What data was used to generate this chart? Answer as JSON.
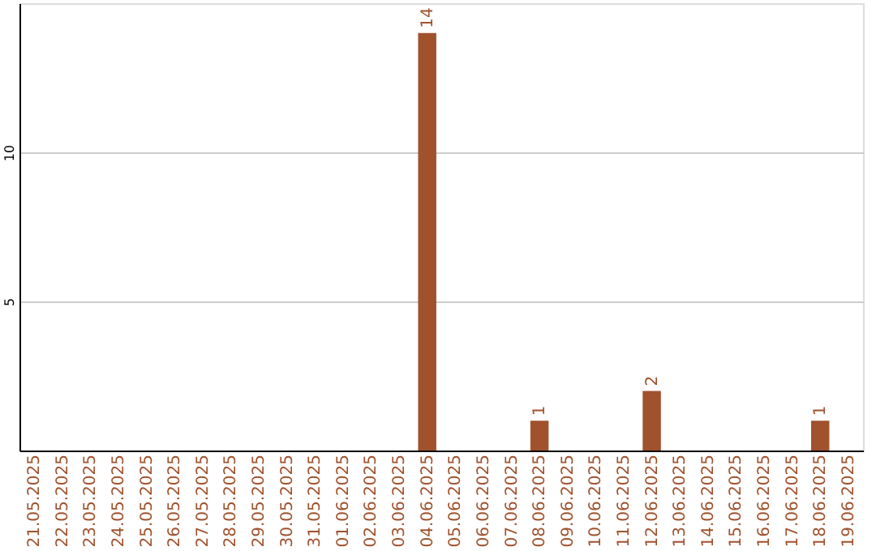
{
  "chart_data": {
    "type": "bar",
    "categories": [
      "21.05.2025",
      "22.05.2025",
      "23.05.2025",
      "24.05.2025",
      "25.05.2025",
      "26.05.2025",
      "27.05.2025",
      "28.05.2025",
      "29.05.2025",
      "30.05.2025",
      "31.05.2025",
      "01.06.2025",
      "02.06.2025",
      "03.06.2025",
      "04.06.2025",
      "05.06.2025",
      "06.06.2025",
      "07.06.2025",
      "08.06.2025",
      "09.06.2025",
      "10.06.2025",
      "11.06.2025",
      "12.06.2025",
      "13.06.2025",
      "14.06.2025",
      "15.06.2025",
      "16.06.2025",
      "17.06.2025",
      "18.06.2025",
      "19.06.2025"
    ],
    "values": [
      0,
      0,
      0,
      0,
      0,
      0,
      0,
      0,
      0,
      0,
      0,
      0,
      0,
      0,
      14,
      0,
      0,
      0,
      1,
      0,
      0,
      0,
      2,
      0,
      0,
      0,
      0,
      0,
      1,
      0
    ],
    "value_labels": [
      null,
      null,
      null,
      null,
      null,
      null,
      null,
      null,
      null,
      null,
      null,
      null,
      null,
      null,
      "14",
      null,
      null,
      null,
      "1",
      null,
      null,
      null,
      "2",
      null,
      null,
      null,
      null,
      null,
      "1",
      null
    ],
    "color": "#a0522d",
    "ylim": [
      0,
      15
    ],
    "yticks": [
      5,
      10
    ],
    "grid": "y"
  }
}
